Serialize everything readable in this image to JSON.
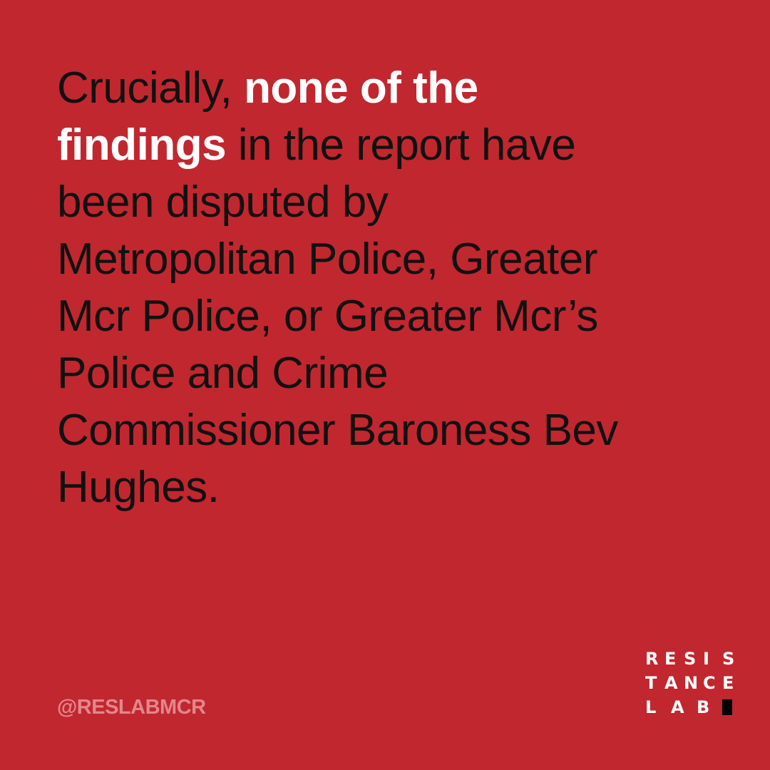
{
  "quote": {
    "line1_plain": "Crucially, ",
    "line1_bold": "none of the",
    "line2_bold": "findings",
    "line2_plain": " in the report have",
    "line3": "been disputed by",
    "line4": "Metropolitan Police, Greater",
    "line5": "Mcr Police, or Greater Mcr’s",
    "line6": "Police and Crime",
    "line7": "Commissioner Baroness Bev",
    "line8": "Hughes."
  },
  "footer": {
    "handle": "@RESLABMCR"
  },
  "logo": {
    "row1": [
      "R",
      "E",
      "S",
      "I",
      "S"
    ],
    "row2": [
      "T",
      "A",
      "N",
      "C",
      "E"
    ],
    "row3": [
      "L",
      "A",
      "B"
    ]
  },
  "colors": {
    "background": "#c1272f",
    "body_text": "#111111",
    "highlight_text": "#ffffff",
    "handle_text": "#e4868c",
    "logo_text": "#ffffff",
    "logo_block": "#000000"
  }
}
